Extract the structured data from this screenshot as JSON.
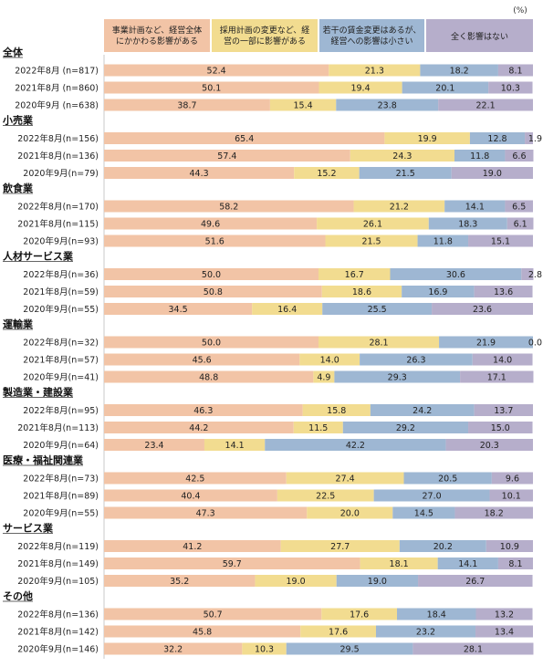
{
  "chart_data": {
    "type": "bar",
    "stacked": "horizontal-100",
    "unit": "(%)",
    "legend_position": "top",
    "xlim": [
      0,
      100
    ],
    "colors": [
      "#F2C4A6",
      "#F2DC90",
      "#9EB7D3",
      "#B6AECB"
    ],
    "series": [
      {
        "name": "事業計画など、経営全体にかかわる影響がある",
        "legend_lines": [
          "事業計画など、経営全体",
          "にかかわる影響がある"
        ]
      },
      {
        "name": "採用計画の変更など、経営の一部に影響がある",
        "legend_lines": [
          "採用計画の変更など、経",
          "営の一部に影響がある"
        ]
      },
      {
        "name": "若干の賃金変更はあるが、経営への影響は小さい",
        "legend_lines": [
          "若干の賃金変更はあるが、",
          "経営への影響は小さい"
        ]
      },
      {
        "name": "全く影響はない",
        "legend_lines": [
          "全く影響はない"
        ]
      }
    ],
    "groups": [
      {
        "label": "全体",
        "rows": [
          {
            "label": "2022年8月 (n=817)",
            "values": [
              52.4,
              21.3,
              18.2,
              8.1
            ]
          },
          {
            "label": "2021年8月 (n=860)",
            "values": [
              50.1,
              19.4,
              20.1,
              10.3
            ]
          },
          {
            "label": "2020年9月 (n=638)",
            "values": [
              38.7,
              15.4,
              23.8,
              22.1
            ]
          }
        ]
      },
      {
        "label": "小売業",
        "rows": [
          {
            "label": "2022年8月(n=156)",
            "values": [
              65.4,
              19.9,
              12.8,
              1.9
            ]
          },
          {
            "label": "2021年8月(n=136)",
            "values": [
              57.4,
              24.3,
              11.8,
              6.6
            ]
          },
          {
            "label": "2020年9月(n=79)",
            "values": [
              44.3,
              15.2,
              21.5,
              19.0
            ]
          }
        ]
      },
      {
        "label": "飲食業",
        "rows": [
          {
            "label": "2022年8月(n=170)",
            "values": [
              58.2,
              21.2,
              14.1,
              6.5
            ]
          },
          {
            "label": "2021年8月(n=115)",
            "values": [
              49.6,
              26.1,
              18.3,
              6.1
            ]
          },
          {
            "label": "2020年9月(n=93)",
            "values": [
              51.6,
              21.5,
              11.8,
              15.1
            ]
          }
        ]
      },
      {
        "label": "人材サービス業",
        "rows": [
          {
            "label": "2022年8月(n=36)",
            "values": [
              50.0,
              16.7,
              30.6,
              2.8
            ]
          },
          {
            "label": "2021年8月(n=59)",
            "values": [
              50.8,
              18.6,
              16.9,
              13.6
            ]
          },
          {
            "label": "2020年9月(n=55)",
            "values": [
              34.5,
              16.4,
              25.5,
              23.6
            ]
          }
        ]
      },
      {
        "label": "運輸業",
        "rows": [
          {
            "label": "2022年8月(n=32)",
            "values": [
              50.0,
              28.1,
              21.9,
              0.0
            ]
          },
          {
            "label": "2021年8月(n=57)",
            "values": [
              45.6,
              14.0,
              26.3,
              14.0
            ]
          },
          {
            "label": "2020年9月(n=41)",
            "values": [
              48.8,
              4.9,
              29.3,
              17.1
            ]
          }
        ]
      },
      {
        "label": "製造業・建設業",
        "rows": [
          {
            "label": "2022年8月(n=95)",
            "values": [
              46.3,
              15.8,
              24.2,
              13.7
            ]
          },
          {
            "label": "2021年8月(n=113)",
            "values": [
              44.2,
              11.5,
              29.2,
              15.0
            ]
          },
          {
            "label": "2020年9月(n=64)",
            "values": [
              23.4,
              14.1,
              42.2,
              20.3
            ]
          }
        ]
      },
      {
        "label": "医療・福祉関連業",
        "rows": [
          {
            "label": "2022年8月(n=73)",
            "values": [
              42.5,
              27.4,
              20.5,
              9.6
            ]
          },
          {
            "label": "2021年8月(n=89)",
            "values": [
              40.4,
              22.5,
              27.0,
              10.1
            ]
          },
          {
            "label": "2020年9月(n=55)",
            "values": [
              47.3,
              20.0,
              14.5,
              18.2
            ]
          }
        ]
      },
      {
        "label": "サービス業",
        "rows": [
          {
            "label": "2022年8月(n=119)",
            "values": [
              41.2,
              27.7,
              20.2,
              10.9
            ]
          },
          {
            "label": "2021年8月(n=149)",
            "values": [
              59.7,
              18.1,
              14.1,
              8.1
            ]
          },
          {
            "label": "2020年9月(n=105)",
            "values": [
              35.2,
              19.0,
              19.0,
              26.7
            ]
          }
        ]
      },
      {
        "label": "その他",
        "rows": [
          {
            "label": "2022年8月(n=136)",
            "values": [
              50.7,
              17.6,
              18.4,
              13.2
            ]
          },
          {
            "label": "2021年8月(n=142)",
            "values": [
              45.8,
              17.6,
              23.2,
              13.4
            ]
          },
          {
            "label": "2020年9月(n=146)",
            "values": [
              32.2,
              10.3,
              29.5,
              28.1
            ]
          }
        ]
      }
    ]
  }
}
